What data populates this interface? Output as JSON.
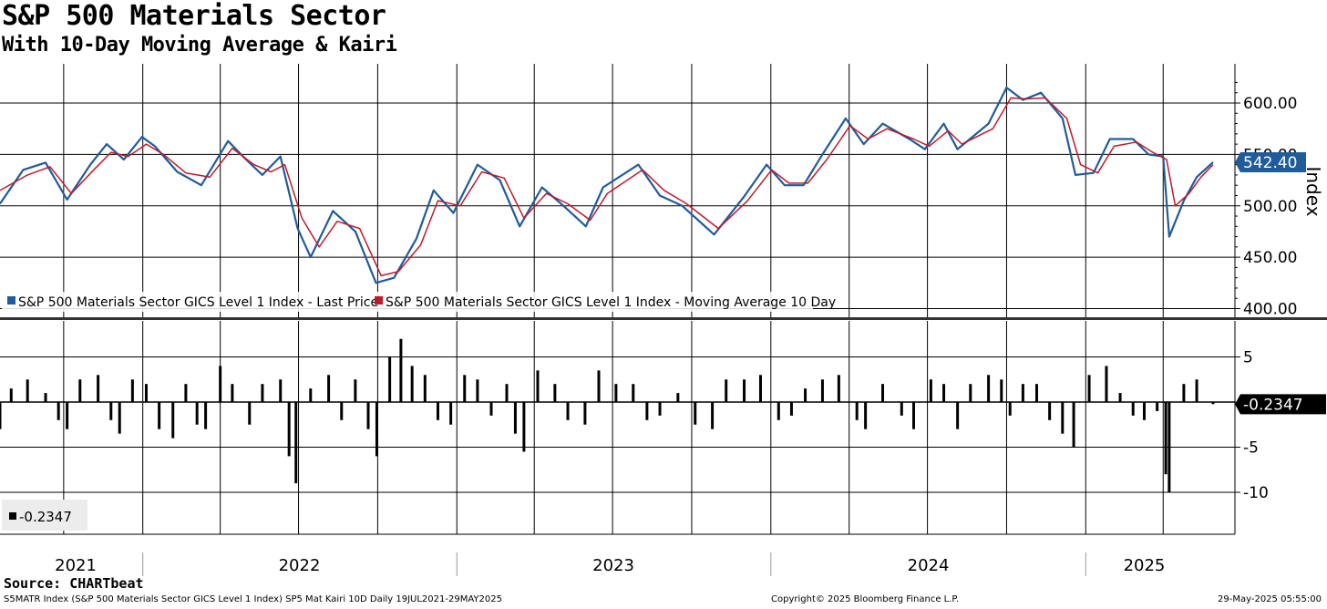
{
  "header": {
    "title": "S&P 500 Materials Sector",
    "subtitle": "With 10-Day Moving Average & Kairi"
  },
  "footer": {
    "source": "Source: CHARTbeat",
    "ticker_info": "S5MATR Index (S&P 500 Materials Sector GICS Level 1 Index) SP5 Mat Kairi 10D  Daily 19JUL2021-29MAY2025",
    "copyright": "Copyright© 2025 Bloomberg Finance L.P.",
    "timestamp": "29-May-2025 05:55:00"
  },
  "colors": {
    "price": "#1f5c99",
    "moving_average": "#c0192e",
    "kairi": "#000000",
    "last_price_badge": "#1f5c99"
  },
  "chart_data": [
    {
      "type": "line",
      "panel": "top",
      "x_range": [
        "2021-07-19",
        "2025-05-29"
      ],
      "y_axis_label": "Index",
      "ylim": [
        400,
        625
      ],
      "y_ticks": [
        "600.00",
        "550.00",
        "500.00",
        "450.00",
        "400.00"
      ],
      "grid": true,
      "last_value_label": "542.40",
      "legend": [
        "S&P 500 Materials Sector GICS Level 1 Index - Last Price",
        "S&P 500 Materials Sector GICS Level 1 Index - Moving Average 10 Day"
      ],
      "legend_position": "bottom-left",
      "series": [
        {
          "name": "S&P 500 Materials Sector GICS Level 1 Index - Last Price",
          "color": "#1f5c99",
          "points": [
            [
              "2021-07-19",
              502
            ],
            [
              "2021-08-15",
              535
            ],
            [
              "2021-09-10",
              542
            ],
            [
              "2021-10-05",
              506
            ],
            [
              "2021-11-01",
              540
            ],
            [
              "2021-11-20",
              560
            ],
            [
              "2021-12-10",
              545
            ],
            [
              "2021-12-31",
              567
            ],
            [
              "2022-01-15",
              558
            ],
            [
              "2022-02-10",
              533
            ],
            [
              "2022-03-10",
              520
            ],
            [
              "2022-04-10",
              563
            ],
            [
              "2022-05-01",
              545
            ],
            [
              "2022-05-20",
              530
            ],
            [
              "2022-06-10",
              548
            ],
            [
              "2022-06-30",
              478
            ],
            [
              "2022-07-15",
              450
            ],
            [
              "2022-08-10",
              495
            ],
            [
              "2022-09-05",
              475
            ],
            [
              "2022-09-29",
              425
            ],
            [
              "2022-10-20",
              430
            ],
            [
              "2022-11-15",
              468
            ],
            [
              "2022-12-05",
              515
            ],
            [
              "2022-12-28",
              493
            ],
            [
              "2023-01-25",
              540
            ],
            [
              "2023-02-20",
              525
            ],
            [
              "2023-03-15",
              480
            ],
            [
              "2023-04-10",
              518
            ],
            [
              "2023-05-05",
              500
            ],
            [
              "2023-05-31",
              480
            ],
            [
              "2023-06-20",
              518
            ],
            [
              "2023-07-31",
              540
            ],
            [
              "2023-08-25",
              510
            ],
            [
              "2023-09-20",
              500
            ],
            [
              "2023-10-27",
              472
            ],
            [
              "2023-11-30",
              508
            ],
            [
              "2023-12-27",
              540
            ],
            [
              "2024-01-17",
              520
            ],
            [
              "2024-02-08",
              520
            ],
            [
              "2024-03-01",
              550
            ],
            [
              "2024-03-28",
              585
            ],
            [
              "2024-04-18",
              560
            ],
            [
              "2024-05-10",
              580
            ],
            [
              "2024-06-10",
              565
            ],
            [
              "2024-06-28",
              555
            ],
            [
              "2024-07-20",
              580
            ],
            [
              "2024-08-05",
              555
            ],
            [
              "2024-09-10",
              580
            ],
            [
              "2024-10-01",
              615
            ],
            [
              "2024-10-20",
              603
            ],
            [
              "2024-11-10",
              610
            ],
            [
              "2024-12-05",
              585
            ],
            [
              "2024-12-20",
              530
            ],
            [
              "2025-01-10",
              532
            ],
            [
              "2025-01-29",
              565
            ],
            [
              "2025-02-25",
              565
            ],
            [
              "2025-03-15",
              550
            ],
            [
              "2025-04-01",
              548
            ],
            [
              "2025-04-08",
              470
            ],
            [
              "2025-04-25",
              505
            ],
            [
              "2025-05-10",
              528
            ],
            [
              "2025-05-29",
              542.4
            ]
          ]
        },
        {
          "name": "S&P 500 Materials Sector GICS Level 1 Index - Moving Average 10 Day",
          "color": "#c0192e",
          "points": [
            [
              "2021-07-19",
              515
            ],
            [
              "2021-08-20",
              530
            ],
            [
              "2021-09-15",
              538
            ],
            [
              "2021-10-10",
              512
            ],
            [
              "2021-11-05",
              535
            ],
            [
              "2021-11-25",
              552
            ],
            [
              "2021-12-15",
              548
            ],
            [
              "2022-01-05",
              560
            ],
            [
              "2022-01-25",
              550
            ],
            [
              "2022-02-20",
              532
            ],
            [
              "2022-03-20",
              528
            ],
            [
              "2022-04-15",
              556
            ],
            [
              "2022-05-10",
              540
            ],
            [
              "2022-05-30",
              533
            ],
            [
              "2022-06-15",
              540
            ],
            [
              "2022-07-05",
              488
            ],
            [
              "2022-07-25",
              460
            ],
            [
              "2022-08-15",
              485
            ],
            [
              "2022-09-10",
              478
            ],
            [
              "2022-10-05",
              432
            ],
            [
              "2022-10-25",
              436
            ],
            [
              "2022-11-20",
              462
            ],
            [
              "2022-12-10",
              505
            ],
            [
              "2023-01-05",
              500
            ],
            [
              "2023-01-30",
              533
            ],
            [
              "2023-02-25",
              527
            ],
            [
              "2023-03-20",
              488
            ],
            [
              "2023-04-15",
              512
            ],
            [
              "2023-05-10",
              502
            ],
            [
              "2023-06-05",
              486
            ],
            [
              "2023-06-25",
              512
            ],
            [
              "2023-08-05",
              535
            ],
            [
              "2023-08-30",
              515
            ],
            [
              "2023-09-25",
              502
            ],
            [
              "2023-11-01",
              478
            ],
            [
              "2023-12-05",
              505
            ],
            [
              "2024-01-02",
              535
            ],
            [
              "2024-01-22",
              522
            ],
            [
              "2024-02-13",
              522
            ],
            [
              "2024-03-06",
              545
            ],
            [
              "2024-04-02",
              578
            ],
            [
              "2024-04-23",
              565
            ],
            [
              "2024-05-15",
              575
            ],
            [
              "2024-06-15",
              565
            ],
            [
              "2024-07-03",
              558
            ],
            [
              "2024-07-25",
              573
            ],
            [
              "2024-08-10",
              560
            ],
            [
              "2024-09-15",
              575
            ],
            [
              "2024-10-06",
              605
            ],
            [
              "2024-10-25",
              604
            ],
            [
              "2024-11-15",
              605
            ],
            [
              "2024-12-10",
              585
            ],
            [
              "2024-12-26",
              540
            ],
            [
              "2025-01-15",
              532
            ],
            [
              "2025-02-03",
              558
            ],
            [
              "2025-03-01",
              562
            ],
            [
              "2025-03-20",
              552
            ],
            [
              "2025-04-05",
              545
            ],
            [
              "2025-04-15",
              500
            ],
            [
              "2025-05-01",
              512
            ],
            [
              "2025-05-15",
              528
            ],
            [
              "2025-05-29",
              540
            ]
          ]
        }
      ]
    },
    {
      "type": "bar",
      "panel": "bottom",
      "x_range": [
        "2021-07-19",
        "2025-05-29"
      ],
      "ylim": [
        -13,
        9.5
      ],
      "y_ticks": [
        "5",
        "0",
        "-5",
        "-10"
      ],
      "grid": true,
      "last_value_label": "-0.2347",
      "legend": [
        "-0.2347"
      ],
      "legend_position": "bottom-left",
      "series": [
        {
          "name": "-0.2347",
          "color": "#000000",
          "points": [
            [
              "2021-07-19",
              -3
            ],
            [
              "2021-08-01",
              1.5
            ],
            [
              "2021-08-20",
              2.5
            ],
            [
              "2021-09-10",
              1
            ],
            [
              "2021-09-25",
              -2
            ],
            [
              "2021-10-05",
              -3
            ],
            [
              "2021-10-20",
              2.5
            ],
            [
              "2021-11-10",
              3
            ],
            [
              "2021-11-25",
              -2
            ],
            [
              "2021-12-05",
              -3.5
            ],
            [
              "2021-12-20",
              2.5
            ],
            [
              "2022-01-05",
              2
            ],
            [
              "2022-01-20",
              -3
            ],
            [
              "2022-02-05",
              -4
            ],
            [
              "2022-02-20",
              2
            ],
            [
              "2022-03-05",
              -2.5
            ],
            [
              "2022-03-15",
              -3
            ],
            [
              "2022-04-01",
              4
            ],
            [
              "2022-04-15",
              2
            ],
            [
              "2022-05-05",
              -2.5
            ],
            [
              "2022-05-20",
              2
            ],
            [
              "2022-06-10",
              2.5
            ],
            [
              "2022-06-20",
              -6
            ],
            [
              "2022-06-28",
              -9
            ],
            [
              "2022-07-15",
              1.5
            ],
            [
              "2022-08-05",
              3
            ],
            [
              "2022-08-20",
              -2
            ],
            [
              "2022-09-05",
              2.5
            ],
            [
              "2022-09-20",
              -3
            ],
            [
              "2022-09-30",
              -6
            ],
            [
              "2022-10-15",
              5
            ],
            [
              "2022-10-28",
              7
            ],
            [
              "2022-11-10",
              4
            ],
            [
              "2022-11-25",
              3
            ],
            [
              "2022-12-10",
              -2
            ],
            [
              "2022-12-25",
              -2.5
            ],
            [
              "2023-01-10",
              3
            ],
            [
              "2023-01-25",
              2.5
            ],
            [
              "2023-02-10",
              -1.5
            ],
            [
              "2023-02-28",
              2
            ],
            [
              "2023-03-10",
              -3.5
            ],
            [
              "2023-03-20",
              -5.5
            ],
            [
              "2023-04-05",
              3.5
            ],
            [
              "2023-04-25",
              2
            ],
            [
              "2023-05-10",
              -2
            ],
            [
              "2023-05-30",
              -2.5
            ],
            [
              "2023-06-15",
              3.5
            ],
            [
              "2023-07-05",
              2
            ],
            [
              "2023-07-25",
              2
            ],
            [
              "2023-08-10",
              -2
            ],
            [
              "2023-08-25",
              -1.5
            ],
            [
              "2023-09-15",
              1
            ],
            [
              "2023-10-05",
              -2.5
            ],
            [
              "2023-10-25",
              -3
            ],
            [
              "2023-11-10",
              2.5
            ],
            [
              "2023-12-01",
              2.5
            ],
            [
              "2023-12-20",
              3
            ],
            [
              "2024-01-10",
              -2
            ],
            [
              "2024-01-25",
              -1.5
            ],
            [
              "2024-02-10",
              1.5
            ],
            [
              "2024-03-01",
              2.5
            ],
            [
              "2024-03-20",
              3
            ],
            [
              "2024-04-10",
              -2
            ],
            [
              "2024-04-20",
              -3
            ],
            [
              "2024-05-10",
              2
            ],
            [
              "2024-06-01",
              -1.5
            ],
            [
              "2024-06-15",
              -3
            ],
            [
              "2024-07-05",
              2.5
            ],
            [
              "2024-07-20",
              2
            ],
            [
              "2024-08-05",
              -3
            ],
            [
              "2024-08-20",
              2
            ],
            [
              "2024-09-10",
              3
            ],
            [
              "2024-09-25",
              2.5
            ],
            [
              "2024-10-05",
              -1.5
            ],
            [
              "2024-10-20",
              2
            ],
            [
              "2024-11-05",
              2
            ],
            [
              "2024-11-20",
              -2
            ],
            [
              "2024-12-05",
              -3.5
            ],
            [
              "2024-12-18",
              -5
            ],
            [
              "2025-01-05",
              3
            ],
            [
              "2025-01-25",
              4
            ],
            [
              "2025-02-10",
              1
            ],
            [
              "2025-02-25",
              -1.5
            ],
            [
              "2025-03-10",
              -2
            ],
            [
              "2025-03-25",
              -1
            ],
            [
              "2025-04-04",
              -8
            ],
            [
              "2025-04-08",
              -10
            ],
            [
              "2025-04-25",
              2
            ],
            [
              "2025-05-10",
              2.5
            ],
            [
              "2025-05-29",
              -0.2347
            ]
          ]
        }
      ]
    }
  ],
  "x_axis": {
    "year_labels": [
      "2021",
      "2022",
      "2023",
      "2024",
      "2025"
    ]
  }
}
